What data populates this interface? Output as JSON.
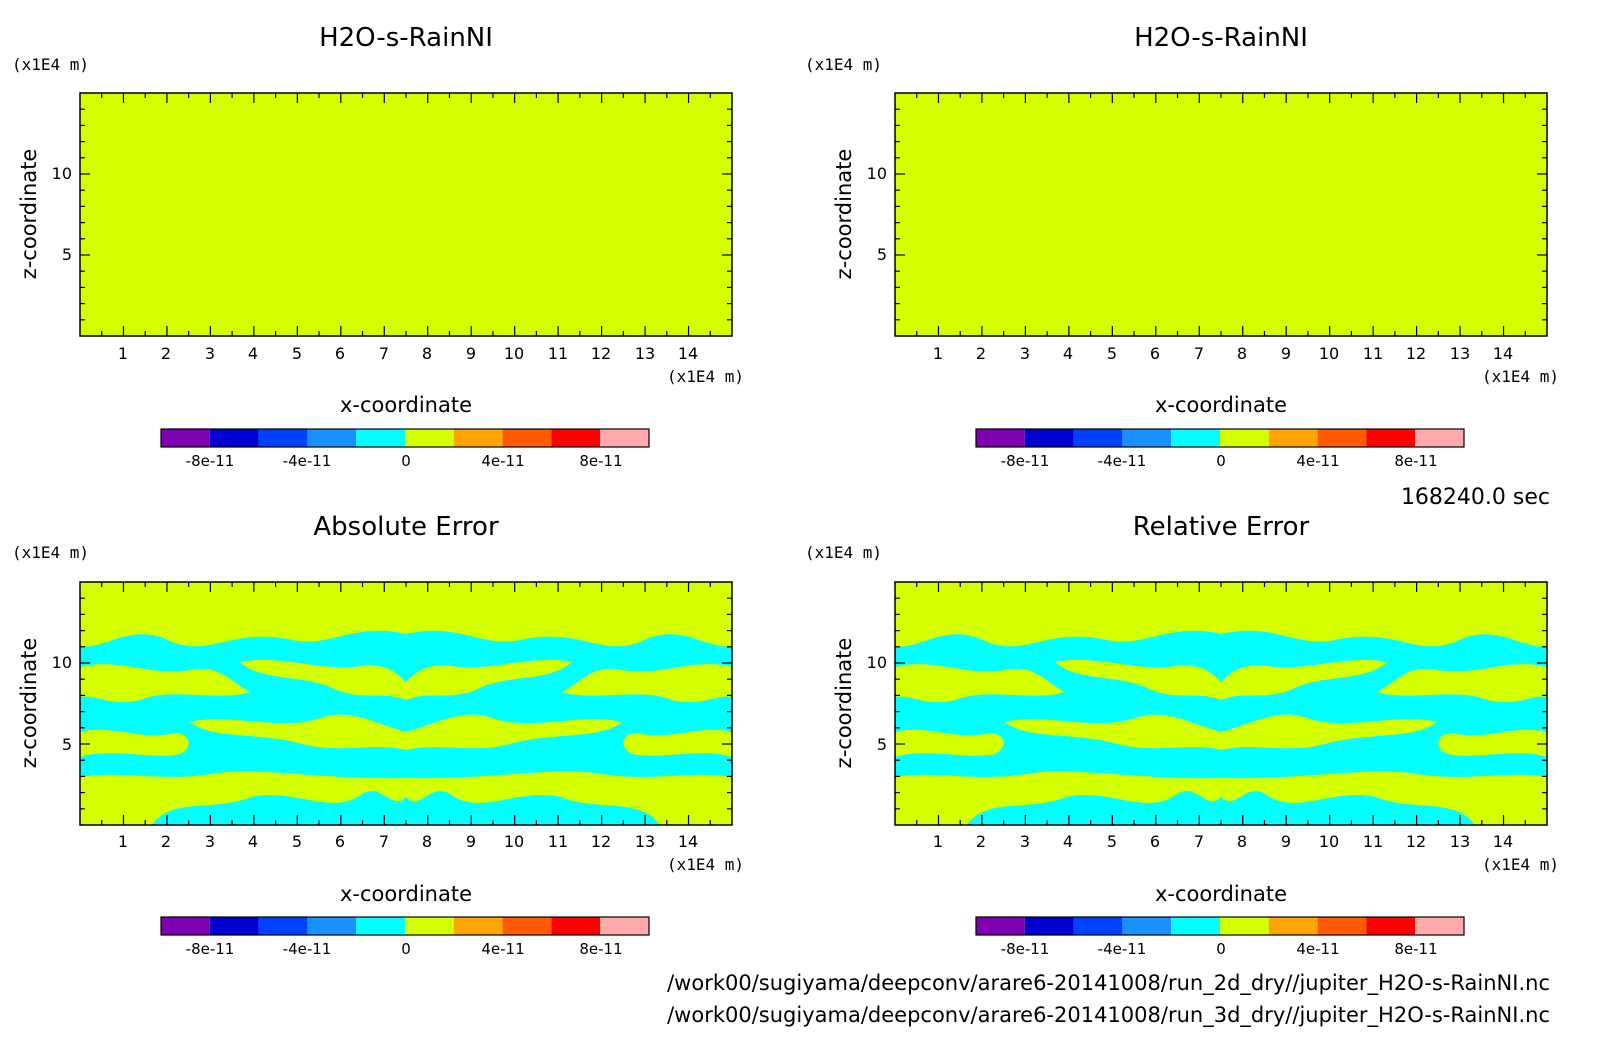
{
  "chart_data": [
    {
      "type": "heatmap",
      "title": "H2O-s-RainNI",
      "xlabel": "x-coordinate",
      "ylabel": "z-coordinate",
      "x_unit": "(x1E4 m)",
      "y_unit": "(x1E4 m)",
      "xlim": [
        0,
        15
      ],
      "ylim": [
        0,
        15
      ],
      "xticks": [
        "1",
        "2",
        "3",
        "4",
        "5",
        "6",
        "7",
        "8",
        "9",
        "10",
        "11",
        "12",
        "13",
        "14"
      ],
      "yticks": [
        "5",
        "10"
      ],
      "field": "uniform",
      "field_level": "0 to 2e-11",
      "colorbar_labels": [
        "-8e-11",
        "-4e-11",
        "0",
        "4e-11",
        "8e-11"
      ]
    },
    {
      "type": "heatmap",
      "title": "H2O-s-RainNI",
      "xlabel": "x-coordinate",
      "ylabel": "z-coordinate",
      "x_unit": "(x1E4 m)",
      "y_unit": "(x1E4 m)",
      "xlim": [
        0,
        15
      ],
      "ylim": [
        0,
        15
      ],
      "xticks": [
        "1",
        "2",
        "3",
        "4",
        "5",
        "6",
        "7",
        "8",
        "9",
        "10",
        "11",
        "12",
        "13",
        "14"
      ],
      "yticks": [
        "5",
        "10"
      ],
      "field": "uniform",
      "field_level": "0 to 2e-11",
      "colorbar_labels": [
        "-8e-11",
        "-4e-11",
        "0",
        "4e-11",
        "8e-11"
      ]
    },
    {
      "type": "heatmap",
      "title": "Absolute Error",
      "xlabel": "x-coordinate",
      "ylabel": "z-coordinate",
      "x_unit": "(x1E4 m)",
      "y_unit": "(x1E4 m)",
      "xlim": [
        0,
        15
      ],
      "ylim": [
        0,
        15
      ],
      "xticks": [
        "1",
        "2",
        "3",
        "4",
        "5",
        "6",
        "7",
        "8",
        "9",
        "10",
        "11",
        "12",
        "13",
        "14"
      ],
      "yticks": [
        "5",
        "10"
      ],
      "field": "mixed",
      "field_levels": [
        "-2e-11 to 0",
        "0 to 2e-11"
      ],
      "colorbar_labels": [
        "-8e-11",
        "-4e-11",
        "0",
        "4e-11",
        "8e-11"
      ]
    },
    {
      "type": "heatmap",
      "title": "Relative Error",
      "xlabel": "x-coordinate",
      "ylabel": "z-coordinate",
      "x_unit": "(x1E4 m)",
      "y_unit": "(x1E4 m)",
      "xlim": [
        0,
        15
      ],
      "ylim": [
        0,
        15
      ],
      "xticks": [
        "1",
        "2",
        "3",
        "4",
        "5",
        "6",
        "7",
        "8",
        "9",
        "10",
        "11",
        "12",
        "13",
        "14"
      ],
      "yticks": [
        "5",
        "10"
      ],
      "field": "mixed",
      "field_levels": [
        "-2e-11 to 0",
        "0 to 2e-11"
      ],
      "colorbar_labels": [
        "-8e-11",
        "-4e-11",
        "0",
        "4e-11",
        "8e-11"
      ]
    }
  ],
  "colorbar_colors": [
    "#7f00b0",
    "#0000d0",
    "#0040ff",
    "#1a90ff",
    "#00ffff",
    "#d4ff00",
    "#ffa500",
    "#ff5a00",
    "#ff0000",
    "#ffaaaa"
  ],
  "time_text": "168240.0 sec",
  "file_paths": [
    "/work00/sugiyama/deepconv/arare6-20141008/run_2d_dry//jupiter_H2O-s-RainNI.nc",
    "/work00/sugiyama/deepconv/arare6-20141008/run_3d_dry//jupiter_H2O-s-RainNI.nc"
  ]
}
